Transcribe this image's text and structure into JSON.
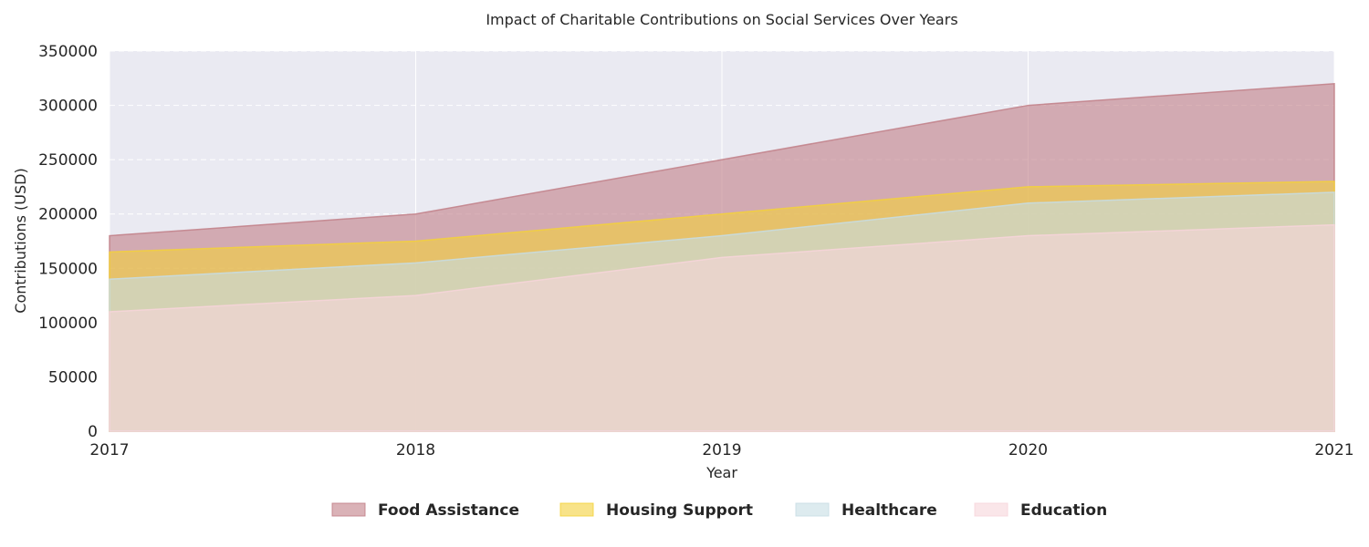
{
  "chart_data": {
    "type": "area",
    "title": "Impact of Charitable Contributions on Social Services Over Years",
    "xlabel": "Year",
    "ylabel": "Contributions (USD)",
    "x": [
      "2017",
      "2018",
      "2019",
      "2020",
      "2021"
    ],
    "ylim": [
      0,
      350000
    ],
    "yticks": [
      "0",
      "50000",
      "100000",
      "150000",
      "200000",
      "250000",
      "300000",
      "350000"
    ],
    "grid": true,
    "legend_position": "bottom-center",
    "series": [
      {
        "name": "Food Assistance",
        "values": [
          180000,
          200000,
          250000,
          300000,
          320000
        ],
        "color": "#c17f87"
      },
      {
        "name": "Housing Support",
        "values": [
          165000,
          175000,
          200000,
          225000,
          230000
        ],
        "color": "#f3d13a"
      },
      {
        "name": "Healthcare",
        "values": [
          140000,
          155000,
          180000,
          210000,
          220000
        ],
        "color": "#c7dde4"
      },
      {
        "name": "Education",
        "values": [
          110000,
          125000,
          160000,
          180000,
          190000
        ],
        "color": "#f7d5db"
      }
    ]
  }
}
